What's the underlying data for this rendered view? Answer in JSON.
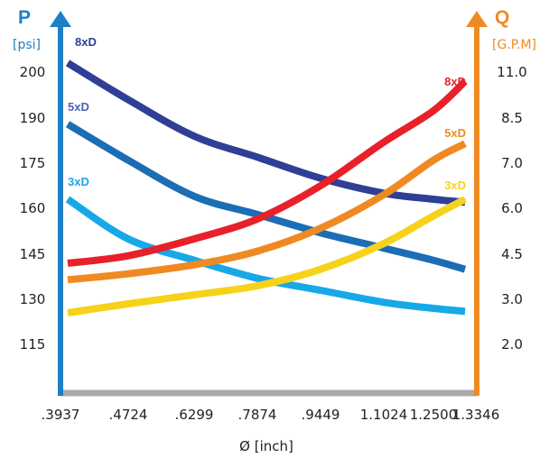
{
  "chart_data": {
    "type": "line",
    "xlabel": "Ø [inch]",
    "x_ticks": [
      ".3937",
      ".4724",
      ".6299",
      ".7874",
      ".9449",
      "1.1024",
      "1.2500",
      "1.3346"
    ],
    "left_axis": {
      "symbol": "P",
      "unit": "[psi]",
      "ticks": [
        "200",
        "190",
        "175",
        "160",
        "145",
        "130",
        "115"
      ],
      "color": "#1f7fc4"
    },
    "right_axis": {
      "symbol": "Q",
      "unit": "[G.P.M]",
      "ticks": [
        "11.0",
        "8.5",
        "7.0",
        "6.0",
        "4.5",
        "3.0",
        "2.0"
      ],
      "color": "#ef8a23"
    },
    "x_axis_color": "#a9a9a9",
    "series": [
      {
        "name": "8xD",
        "axis": "left",
        "color": "#2e3f95",
        "values": [
          202,
          194,
          184,
          177,
          170,
          165,
          163,
          162
        ]
      },
      {
        "name": "5xD",
        "axis": "left",
        "color": "#1b6db5",
        "label_color": "#4d63b3",
        "values": [
          188,
          176,
          164,
          158,
          152,
          147,
          143,
          140
        ]
      },
      {
        "name": "3xD",
        "axis": "left",
        "color": "#17a8e8",
        "values": [
          163,
          150,
          143,
          137,
          133,
          129,
          127,
          126
        ]
      },
      {
        "name": "8xD",
        "axis": "right",
        "color": "#e8202a",
        "values": [
          4.2,
          4.45,
          5.0,
          5.65,
          6.5,
          7.7,
          8.9,
          10.5
        ]
      },
      {
        "name": "5xD",
        "axis": "right",
        "color": "#ef8a23",
        "values": [
          3.65,
          3.85,
          4.15,
          4.6,
          5.35,
          6.3,
          7.1,
          7.65
        ]
      },
      {
        "name": "3xD",
        "axis": "right",
        "color": "#f7d21b",
        "values": [
          2.7,
          2.9,
          3.15,
          3.45,
          4.0,
          4.85,
          5.75,
          6.2
        ]
      }
    ]
  }
}
